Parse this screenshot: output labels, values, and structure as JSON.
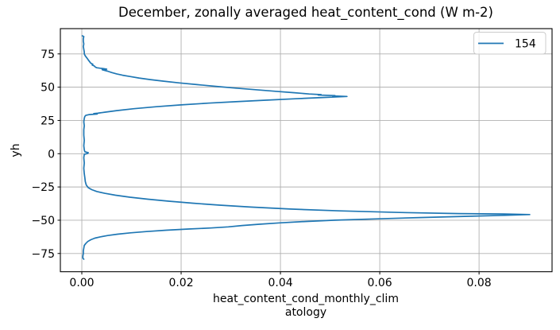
{
  "chart_data": {
    "type": "line",
    "title": "December, zonally averaged heat_content_cond (W m-2)",
    "ylabel": "yh",
    "xlabel_lines": [
      "heat_content_cond_monthly_clim",
      "atology"
    ],
    "xlim": [
      -0.00432,
      0.0947
    ],
    "ylim": [
      -88.7,
      94.0
    ],
    "grid": true,
    "grid_color": "#b0b0b0",
    "spine_color": "#000000",
    "background_color": "#ffffff",
    "xticks": {
      "values": [
        0.0,
        0.02,
        0.04,
        0.06,
        0.08
      ],
      "labels": [
        "0.00",
        "0.02",
        "0.04",
        "0.06",
        "0.08"
      ]
    },
    "yticks": {
      "values": [
        75,
        50,
        25,
        0,
        -25,
        -50,
        -75
      ],
      "labels": [
        "75",
        "50",
        "25",
        "0",
        "−25",
        "−50",
        "−75"
      ]
    },
    "legend": {
      "position": "upper right",
      "entries": [
        {
          "label": "154",
          "color": "#1f77b4"
        }
      ]
    },
    "series": [
      {
        "name": "154",
        "color": "#1f77b4",
        "x_is_value_y_is_latitude": true,
        "points": [
          [
            0.0001,
            88.6
          ],
          [
            0.0004,
            88.0
          ],
          [
            0.0003,
            86.5
          ],
          [
            0.0003,
            84.5
          ],
          [
            0.0004,
            82.5
          ],
          [
            0.0003,
            80.5
          ],
          [
            0.0004,
            78.5
          ],
          [
            0.0005,
            76.5
          ],
          [
            0.0005,
            75.0
          ],
          [
            0.0007,
            73.5
          ],
          [
            0.001,
            72.0
          ],
          [
            0.0013,
            70.5
          ],
          [
            0.0016,
            69.0
          ],
          [
            0.0018,
            68.0
          ],
          [
            0.0022,
            67.2
          ],
          [
            0.0021,
            66.6
          ],
          [
            0.0025,
            66.0
          ],
          [
            0.0027,
            65.2
          ],
          [
            0.003,
            64.6
          ],
          [
            0.0044,
            63.9
          ],
          [
            0.005,
            63.5
          ],
          [
            0.0041,
            63.1
          ],
          [
            0.0046,
            62.6
          ],
          [
            0.0052,
            62.0
          ],
          [
            0.006,
            61.0
          ],
          [
            0.007,
            60.0
          ],
          [
            0.0082,
            59.0
          ],
          [
            0.0097,
            58.0
          ],
          [
            0.0115,
            56.9
          ],
          [
            0.0138,
            55.7
          ],
          [
            0.0165,
            54.5
          ],
          [
            0.0197,
            53.2
          ],
          [
            0.0232,
            51.9
          ],
          [
            0.027,
            50.6
          ],
          [
            0.031,
            49.3
          ],
          [
            0.035,
            48.1
          ],
          [
            0.039,
            46.9
          ],
          [
            0.0428,
            45.8
          ],
          [
            0.0458,
            44.9
          ],
          [
            0.0482,
            44.4
          ],
          [
            0.0476,
            44.1
          ],
          [
            0.051,
            43.7
          ],
          [
            0.0505,
            43.45
          ],
          [
            0.0534,
            43.0
          ],
          [
            0.049,
            42.3
          ],
          [
            0.043,
            41.3
          ],
          [
            0.037,
            40.2
          ],
          [
            0.031,
            39.1
          ],
          [
            0.0255,
            38.0
          ],
          [
            0.02,
            36.7
          ],
          [
            0.015,
            35.3
          ],
          [
            0.0105,
            33.8
          ],
          [
            0.007,
            32.4
          ],
          [
            0.0046,
            31.2
          ],
          [
            0.0032,
            30.4
          ],
          [
            0.0024,
            30.1
          ],
          [
            0.0031,
            29.8
          ],
          [
            0.0015,
            29.4
          ],
          [
            0.0008,
            28.8
          ],
          [
            0.0006,
            28.0
          ],
          [
            0.0005,
            26.5
          ],
          [
            0.0004,
            24.0
          ],
          [
            0.0005,
            21.0
          ],
          [
            0.0004,
            18.0
          ],
          [
            0.0004,
            14.0
          ],
          [
            0.0005,
            10.0
          ],
          [
            0.0004,
            6.0
          ],
          [
            0.0005,
            3.0
          ],
          [
            0.0006,
            1.5
          ],
          [
            0.0013,
            0.8
          ],
          [
            0.0012,
            0.2
          ],
          [
            0.0005,
            -0.5
          ],
          [
            0.0004,
            -3.0
          ],
          [
            0.0005,
            -7.0
          ],
          [
            0.0004,
            -11.0
          ],
          [
            0.0005,
            -15.0
          ],
          [
            0.0006,
            -18.0
          ],
          [
            0.0007,
            -21.0
          ],
          [
            0.0009,
            -23.5
          ],
          [
            0.0013,
            -25.5
          ],
          [
            0.002,
            -27.0
          ],
          [
            0.003,
            -28.4
          ],
          [
            0.0046,
            -29.8
          ],
          [
            0.0068,
            -31.2
          ],
          [
            0.0097,
            -32.7
          ],
          [
            0.0133,
            -34.2
          ],
          [
            0.0175,
            -35.7
          ],
          [
            0.0223,
            -37.2
          ],
          [
            0.0278,
            -38.7
          ],
          [
            0.034,
            -40.1
          ],
          [
            0.042,
            -41.6
          ],
          [
            0.052,
            -43.0
          ],
          [
            0.064,
            -44.2
          ],
          [
            0.076,
            -45.0
          ],
          [
            0.086,
            -45.4
          ],
          [
            0.0902,
            -45.7
          ],
          [
            0.085,
            -46.3
          ],
          [
            0.077,
            -47.1
          ],
          [
            0.068,
            -48.0
          ],
          [
            0.059,
            -49.0
          ],
          [
            0.051,
            -50.0
          ],
          [
            0.0448,
            -51.0
          ],
          [
            0.0398,
            -52.0
          ],
          [
            0.0357,
            -53.0
          ],
          [
            0.0323,
            -54.0
          ],
          [
            0.0295,
            -55.0
          ],
          [
            0.026,
            -55.8
          ],
          [
            0.0215,
            -56.6
          ],
          [
            0.017,
            -57.5
          ],
          [
            0.013,
            -58.5
          ],
          [
            0.0098,
            -59.5
          ],
          [
            0.0072,
            -60.5
          ],
          [
            0.0052,
            -61.5
          ],
          [
            0.0037,
            -62.5
          ],
          [
            0.0026,
            -63.5
          ],
          [
            0.0018,
            -64.7
          ],
          [
            0.0012,
            -66.0
          ],
          [
            0.0008,
            -67.5
          ],
          [
            0.0005,
            -69.0
          ],
          [
            0.0004,
            -71.0
          ],
          [
            0.0003,
            -73.0
          ],
          [
            0.0003,
            -75.0
          ],
          [
            0.0002,
            -77.0
          ],
          [
            0.0002,
            -78.5
          ],
          [
            0.0004,
            -79.3
          ]
        ]
      }
    ]
  }
}
